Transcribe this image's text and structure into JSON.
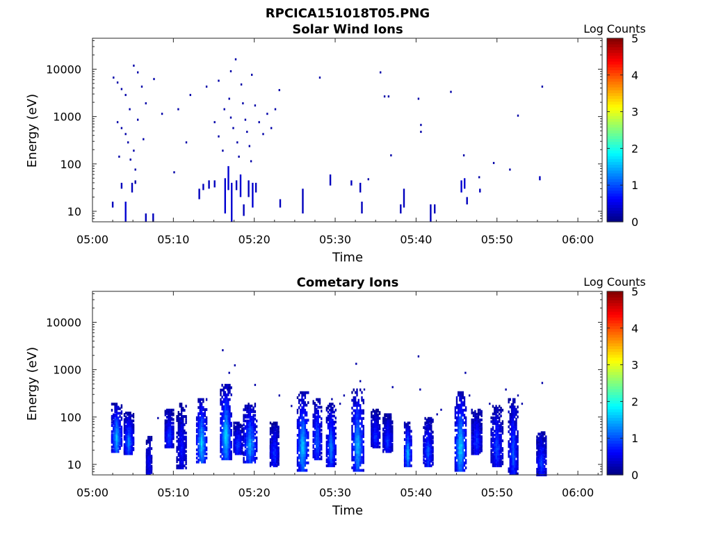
{
  "figure_title": "RPCICA151018T05.PNG",
  "chart_data": [
    {
      "type": "heatmap",
      "title": "Solar Wind Ions",
      "xlabel": "Time",
      "ylabel": "Energy (eV)",
      "y_scale": "log",
      "xlim": [
        "05:00",
        "06:03"
      ],
      "ylim": [
        6,
        45000
      ],
      "x_ticks": [
        "05:00",
        "05:10",
        "05:20",
        "05:30",
        "05:40",
        "05:50",
        "06:00"
      ],
      "y_ticks": [
        "10",
        "100",
        "1000",
        "10000"
      ],
      "grid": false,
      "colorbar": {
        "label": "Log Counts",
        "min": 0,
        "max": 5,
        "ticks": [
          "0",
          "1",
          "2",
          "3",
          "4",
          "5"
        ],
        "colormap": "jet"
      },
      "segments": [
        {
          "t": "05:02.4",
          "e1": 12,
          "e2": 16,
          "v": 0.3
        },
        {
          "t": "05:03.5",
          "e1": 30,
          "e2": 40,
          "v": 0.3
        },
        {
          "t": "05:04.0",
          "e1": 6,
          "e2": 16,
          "v": 0.4
        },
        {
          "t": "05:04.8",
          "e1": 25,
          "e2": 40,
          "v": 0.3
        },
        {
          "t": "05:05.2",
          "e1": 38,
          "e2": 45,
          "v": 0.2
        },
        {
          "t": "05:06.5",
          "e1": 6,
          "e2": 9,
          "v": 0.3
        },
        {
          "t": "05:07.4",
          "e1": 6,
          "e2": 9,
          "v": 0.3
        },
        {
          "t": "05:13.1",
          "e1": 18,
          "e2": 30,
          "v": 0.3
        },
        {
          "t": "05:13.6",
          "e1": 28,
          "e2": 38,
          "v": 0.3
        },
        {
          "t": "05:14.3",
          "e1": 30,
          "e2": 45,
          "v": 0.3
        },
        {
          "t": "05:15.0",
          "e1": 32,
          "e2": 45,
          "v": 0.3
        },
        {
          "t": "05:16.3",
          "e1": 9,
          "e2": 50,
          "v": 0.4
        },
        {
          "t": "05:16.7",
          "e1": 28,
          "e2": 90,
          "v": 0.4
        },
        {
          "t": "05:17.1",
          "e1": 6,
          "e2": 40,
          "v": 0.4
        },
        {
          "t": "05:17.7",
          "e1": 28,
          "e2": 45,
          "v": 0.3
        },
        {
          "t": "05:18.2",
          "e1": 20,
          "e2": 60,
          "v": 0.4
        },
        {
          "t": "05:18.6",
          "e1": 8,
          "e2": 14,
          "v": 0.3
        },
        {
          "t": "05:19.2",
          "e1": 20,
          "e2": 45,
          "v": 0.3
        },
        {
          "t": "05:19.7",
          "e1": 12,
          "e2": 40,
          "v": 0.4
        },
        {
          "t": "05:20.1",
          "e1": 25,
          "e2": 40,
          "v": 0.3
        },
        {
          "t": "05:23.1",
          "e1": 12,
          "e2": 18,
          "v": 0.3
        },
        {
          "t": "05:25.9",
          "e1": 9,
          "e2": 30,
          "v": 0.3
        },
        {
          "t": "05:29.3",
          "e1": 35,
          "e2": 60,
          "v": 0.3
        },
        {
          "t": "05:31.9",
          "e1": 35,
          "e2": 45,
          "v": 0.3
        },
        {
          "t": "05:33.0",
          "e1": 25,
          "e2": 40,
          "v": 0.3
        },
        {
          "t": "05:33.2",
          "e1": 9,
          "e2": 16,
          "v": 0.3
        },
        {
          "t": "05:38.0",
          "e1": 9,
          "e2": 14,
          "v": 0.3
        },
        {
          "t": "05:38.4",
          "e1": 12,
          "e2": 30,
          "v": 0.3
        },
        {
          "t": "05:41.7",
          "e1": 6,
          "e2": 14,
          "v": 0.3
        },
        {
          "t": "05:42.2",
          "e1": 9,
          "e2": 14,
          "v": 0.3
        },
        {
          "t": "05:45.5",
          "e1": 25,
          "e2": 45,
          "v": 0.4
        },
        {
          "t": "05:45.9",
          "e1": 30,
          "e2": 50,
          "v": 0.4
        },
        {
          "t": "05:46.2",
          "e1": 14,
          "e2": 20,
          "v": 0.3
        },
        {
          "t": "05:47.8",
          "e1": 25,
          "e2": 30,
          "v": 0.3
        },
        {
          "t": "05:55.2",
          "e1": 45,
          "e2": 55,
          "v": 0.3
        }
      ],
      "points": [
        {
          "t": "05:02.5",
          "e": 7000,
          "v": 0.2
        },
        {
          "t": "05:03.0",
          "e": 5500,
          "v": 0.2
        },
        {
          "t": "05:03.5",
          "e": 4000,
          "v": 0.2
        },
        {
          "t": "05:04.0",
          "e": 3000,
          "v": 0.2
        },
        {
          "t": "05:04.5",
          "e": 1500,
          "v": 0.2
        },
        {
          "t": "05:05.0",
          "e": 12500,
          "v": 0.2
        },
        {
          "t": "05:05.5",
          "e": 9000,
          "v": 0.2
        },
        {
          "t": "05:06.0",
          "e": 4500,
          "v": 0.2
        },
        {
          "t": "05:06.5",
          "e": 2000,
          "v": 0.2
        },
        {
          "t": "05:07.5",
          "e": 6500,
          "v": 0.2
        },
        {
          "t": "05:03.0",
          "e": 800,
          "v": 0.2
        },
        {
          "t": "05:03.5",
          "e": 600,
          "v": 0.2
        },
        {
          "t": "05:04.0",
          "e": 450,
          "v": 0.2
        },
        {
          "t": "05:04.3",
          "e": 300,
          "v": 0.2
        },
        {
          "t": "05:05.0",
          "e": 200,
          "v": 0.2
        },
        {
          "t": "05:05.5",
          "e": 900,
          "v": 0.2
        },
        {
          "t": "05:06.2",
          "e": 350,
          "v": 0.2
        },
        {
          "t": "05:03.2",
          "e": 150,
          "v": 0.2
        },
        {
          "t": "05:04.6",
          "e": 130,
          "v": 0.2
        },
        {
          "t": "05:05.2",
          "e": 80,
          "v": 0.2
        },
        {
          "t": "05:08.5",
          "e": 1200,
          "v": 0.2
        },
        {
          "t": "05:10.0",
          "e": 70,
          "v": 0.2
        },
        {
          "t": "05:10.5",
          "e": 1500,
          "v": 0.2
        },
        {
          "t": "05:11.5",
          "e": 300,
          "v": 0.2
        },
        {
          "t": "05:12.0",
          "e": 3000,
          "v": 0.2
        },
        {
          "t": "05:14.0",
          "e": 4500,
          "v": 0.2
        },
        {
          "t": "05:15.5",
          "e": 6000,
          "v": 0.2
        },
        {
          "t": "05:15.0",
          "e": 800,
          "v": 0.2
        },
        {
          "t": "05:15.5",
          "e": 400,
          "v": 0.2
        },
        {
          "t": "05:16.0",
          "e": 200,
          "v": 0.2
        },
        {
          "t": "05:16.2",
          "e": 1500,
          "v": 0.2
        },
        {
          "t": "05:16.8",
          "e": 2500,
          "v": 0.2
        },
        {
          "t": "05:17.0",
          "e": 1000,
          "v": 0.2
        },
        {
          "t": "05:17.3",
          "e": 600,
          "v": 0.2
        },
        {
          "t": "05:17.6",
          "e": 17000,
          "v": 0.2
        },
        {
          "t": "05:17.8",
          "e": 300,
          "v": 0.2
        },
        {
          "t": "05:18.0",
          "e": 150,
          "v": 0.2
        },
        {
          "t": "05:18.3",
          "e": 5000,
          "v": 0.2
        },
        {
          "t": "05:18.5",
          "e": 2000,
          "v": 0.2
        },
        {
          "t": "05:18.8",
          "e": 900,
          "v": 0.2
        },
        {
          "t": "05:19.0",
          "e": 500,
          "v": 0.2
        },
        {
          "t": "05:19.3",
          "e": 250,
          "v": 0.2
        },
        {
          "t": "05:19.5",
          "e": 120,
          "v": 0.2
        },
        {
          "t": "05:20.0",
          "e": 1800,
          "v": 0.2
        },
        {
          "t": "05:20.5",
          "e": 800,
          "v": 0.2
        },
        {
          "t": "05:21.0",
          "e": 450,
          "v": 0.2
        },
        {
          "t": "05:21.5",
          "e": 1200,
          "v": 0.2
        },
        {
          "t": "05:22.0",
          "e": 600,
          "v": 0.2
        },
        {
          "t": "05:22.5",
          "e": 1500,
          "v": 0.2
        },
        {
          "t": "05:23.0",
          "e": 3800,
          "v": 0.2
        },
        {
          "t": "05:19.6",
          "e": 8000,
          "v": 0.2
        },
        {
          "t": "05:17.0",
          "e": 9500,
          "v": 0.2
        },
        {
          "t": "05:28.0",
          "e": 7000,
          "v": 0.2
        },
        {
          "t": "05:35.5",
          "e": 9000,
          "v": 0.2
        },
        {
          "t": "05:36.0",
          "e": 2800,
          "v": 0.2
        },
        {
          "t": "05:36.5",
          "e": 2800,
          "v": 0.2
        },
        {
          "t": "05:36.8",
          "e": 160,
          "v": 0.2
        },
        {
          "t": "05:40.2",
          "e": 2500,
          "v": 0.2
        },
        {
          "t": "05:40.5",
          "e": 700,
          "v": 0.2
        },
        {
          "t": "05:40.5",
          "e": 500,
          "v": 0.2
        },
        {
          "t": "05:44.2",
          "e": 3500,
          "v": 0.2
        },
        {
          "t": "05:45.8",
          "e": 160,
          "v": 0.2
        },
        {
          "t": "05:49.5",
          "e": 110,
          "v": 0.2
        },
        {
          "t": "05:51.5",
          "e": 80,
          "v": 0.2
        },
        {
          "t": "05:52.5",
          "e": 1100,
          "v": 0.2
        },
        {
          "t": "05:55.5",
          "e": 4500,
          "v": 0.2
        },
        {
          "t": "05:34.0",
          "e": 50,
          "v": 0.2
        },
        {
          "t": "05:47.7",
          "e": 55,
          "v": 0.2
        }
      ]
    },
    {
      "type": "heatmap",
      "title": "Cometary Ions",
      "xlabel": "Time",
      "ylabel": "Energy (eV)",
      "y_scale": "log",
      "xlim": [
        "05:00",
        "06:03"
      ],
      "ylim": [
        6,
        45000
      ],
      "x_ticks": [
        "05:00",
        "05:10",
        "05:20",
        "05:30",
        "05:40",
        "05:50",
        "06:00"
      ],
      "y_ticks": [
        "10",
        "100",
        "1000",
        "10000"
      ],
      "grid": false,
      "colorbar": {
        "label": "Log Counts",
        "min": 0,
        "max": 5,
        "ticks": [
          "0",
          "1",
          "2",
          "3",
          "4",
          "5"
        ],
        "colormap": "jet"
      },
      "bursts": [
        {
          "t": "05:03.0",
          "e1": 20,
          "e2": 200,
          "peak": 1.5,
          "w": 1.4
        },
        {
          "t": "05:04.5",
          "e1": 18,
          "e2": 130,
          "peak": 1.2,
          "w": 1.3
        },
        {
          "t": "05:07.0",
          "e1": 6,
          "e2": 40,
          "peak": 0.6,
          "w": 0.8
        },
        {
          "t": "05:09.5",
          "e1": 25,
          "e2": 150,
          "peak": 0.9,
          "w": 1.2
        },
        {
          "t": "05:11.0",
          "e1": 9,
          "e2": 200,
          "peak": 0.6,
          "w": 1.3
        },
        {
          "t": "05:13.5",
          "e1": 12,
          "e2": 250,
          "peak": 1.6,
          "w": 1.4
        },
        {
          "t": "05:16.5",
          "e1": 14,
          "e2": 500,
          "peak": 1.7,
          "w": 1.5
        },
        {
          "t": "05:18.0",
          "e1": 18,
          "e2": 80,
          "peak": 0.9,
          "w": 1.2
        },
        {
          "t": "05:19.5",
          "e1": 12,
          "e2": 200,
          "peak": 1.4,
          "w": 1.8
        },
        {
          "t": "05:22.5",
          "e1": 10,
          "e2": 80,
          "peak": 0.8,
          "w": 1.2
        },
        {
          "t": "05:26.0",
          "e1": 8,
          "e2": 350,
          "peak": 1.6,
          "w": 1.5
        },
        {
          "t": "05:27.8",
          "e1": 14,
          "e2": 250,
          "peak": 1.1,
          "w": 1.2
        },
        {
          "t": "05:29.5",
          "e1": 10,
          "e2": 200,
          "peak": 1.2,
          "w": 1.3
        },
        {
          "t": "05:32.8",
          "e1": 8,
          "e2": 400,
          "peak": 1.5,
          "w": 1.6
        },
        {
          "t": "05:35.0",
          "e1": 25,
          "e2": 150,
          "peak": 0.8,
          "w": 1.2
        },
        {
          "t": "05:36.5",
          "e1": 20,
          "e2": 120,
          "peak": 0.8,
          "w": 1.3
        },
        {
          "t": "05:39.0",
          "e1": 10,
          "e2": 80,
          "peak": 1.5,
          "w": 1.0
        },
        {
          "t": "05:41.5",
          "e1": 10,
          "e2": 100,
          "peak": 1.0,
          "w": 1.3
        },
        {
          "t": "05:45.5",
          "e1": 8,
          "e2": 350,
          "peak": 1.7,
          "w": 1.5
        },
        {
          "t": "05:47.5",
          "e1": 18,
          "e2": 150,
          "peak": 0.8,
          "w": 1.4
        },
        {
          "t": "05:50.0",
          "e1": 10,
          "e2": 180,
          "peak": 0.9,
          "w": 1.6
        },
        {
          "t": "05:52.0",
          "e1": 6,
          "e2": 250,
          "peak": 1.0,
          "w": 1.3
        },
        {
          "t": "05:55.5",
          "e1": 6,
          "e2": 50,
          "peak": 0.9,
          "w": 1.3
        }
      ],
      "points": [
        {
          "t": "05:16.0",
          "e": 2700,
          "v": 0.2
        },
        {
          "t": "05:17.5",
          "e": 1300,
          "v": 0.2
        },
        {
          "t": "05:16.8",
          "e": 900,
          "v": 0.2
        },
        {
          "t": "05:16.6",
          "e": 400,
          "v": 0.2
        },
        {
          "t": "05:20.0",
          "e": 500,
          "v": 0.2
        },
        {
          "t": "05:23.0",
          "e": 300,
          "v": 0.2
        },
        {
          "t": "05:29.5",
          "e": 250,
          "v": 0.2
        },
        {
          "t": "05:30.5",
          "e": 200,
          "v": 0.2
        },
        {
          "t": "05:31.0",
          "e": 300,
          "v": 0.2
        },
        {
          "t": "05:32.5",
          "e": 1400,
          "v": 0.2
        },
        {
          "t": "05:33.0",
          "e": 600,
          "v": 0.2
        },
        {
          "t": "05:33.5",
          "e": 400,
          "v": 0.2
        },
        {
          "t": "05:37.0",
          "e": 450,
          "v": 0.2
        },
        {
          "t": "05:40.2",
          "e": 2000,
          "v": 0.2
        },
        {
          "t": "05:40.4",
          "e": 400,
          "v": 0.2
        },
        {
          "t": "05:42.5",
          "e": 120,
          "v": 0.2
        },
        {
          "t": "05:43.0",
          "e": 150,
          "v": 0.2
        },
        {
          "t": "05:46.0",
          "e": 900,
          "v": 0.2
        },
        {
          "t": "05:46.5",
          "e": 300,
          "v": 0.2
        },
        {
          "t": "05:49.0",
          "e": 200,
          "v": 0.2
        },
        {
          "t": "05:51.0",
          "e": 400,
          "v": 0.2
        },
        {
          "t": "05:52.5",
          "e": 300,
          "v": 0.2
        },
        {
          "t": "05:53.0",
          "e": 200,
          "v": 0.2
        },
        {
          "t": "05:55.5",
          "e": 550,
          "v": 0.2
        },
        {
          "t": "05:24.5",
          "e": 180,
          "v": 0.2
        },
        {
          "t": "05:08.0",
          "e": 100,
          "v": 0.2
        }
      ]
    }
  ]
}
